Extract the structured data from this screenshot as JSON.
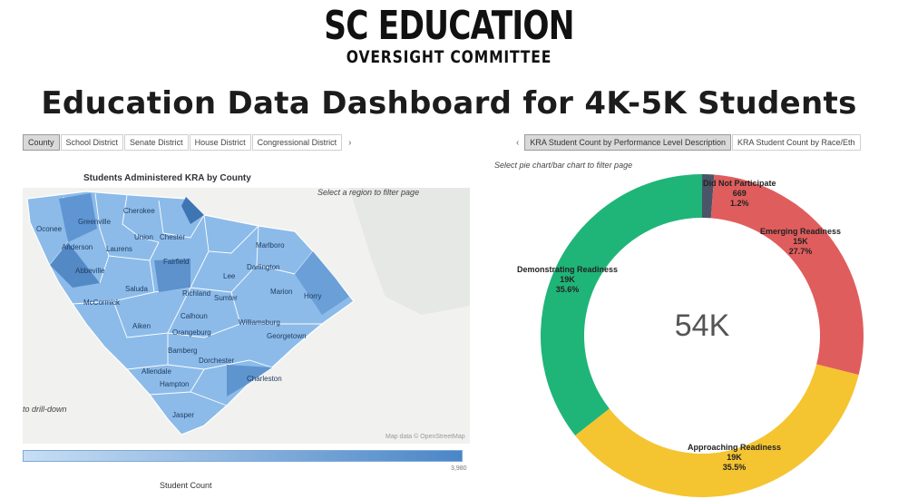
{
  "logo": {
    "line1": "SC EDUCATION",
    "line2": "OVERSIGHT COMMITTEE"
  },
  "title": "Education Data Dashboard for 4K-5K Students",
  "left_tabs": {
    "items": [
      {
        "label": "County",
        "active": true
      },
      {
        "label": "School District",
        "active": false
      },
      {
        "label": "Senate District",
        "active": false
      },
      {
        "label": "House District",
        "active": false
      },
      {
        "label": "Congressional District",
        "active": false
      }
    ],
    "next_icon": "›"
  },
  "right_tabs": {
    "prev_icon": "‹",
    "items": [
      {
        "label": "KRA Student Count by Performance Level Description",
        "active": true
      },
      {
        "label": "KRA Student Count by Race/Eth",
        "active": false
      }
    ]
  },
  "map": {
    "title": "Students Administered KRA by County",
    "hint": "Select a region to filter page",
    "drill_hint": "to drill-down",
    "attribution": "Map data © OpenStreetMap",
    "fill_color": "#7fb0e6",
    "counties": [
      "Oconee",
      "Greenville",
      "Cherokee",
      "Anderson",
      "Laurens",
      "Union",
      "Chester",
      "Abbeville",
      "Fairfield",
      "Marlboro",
      "Darlington",
      "Lee",
      "Saluda",
      "McCormick",
      "Richland",
      "Sumter",
      "Marion",
      "Horry",
      "Calhoun",
      "Aiken",
      "Orangeburg",
      "Williamsburg",
      "Georgetown",
      "Bamberg",
      "Dorchester",
      "Allendale",
      "Charleston",
      "Hampton",
      "Jasper"
    ]
  },
  "legend": {
    "label": "Student Count",
    "max": "3,980"
  },
  "donut": {
    "hint": "Select pie chart/bar chart to filter page",
    "center_value": "54K"
  },
  "chart_data": {
    "type": "pie",
    "donut": true,
    "center_label": "54K",
    "slices": [
      {
        "label": "Did Not Participate",
        "count": "669",
        "percent": "1.2%",
        "value": 1.2,
        "color": "#4a5568"
      },
      {
        "label": "Emerging Readiness",
        "count": "15K",
        "percent": "27.7%",
        "value": 27.7,
        "color": "#e05d5d"
      },
      {
        "label": "Approaching Readiness",
        "count": "19K",
        "percent": "35.5%",
        "value": 35.5,
        "color": "#f5c431"
      },
      {
        "label": "Demonstrating Readiness",
        "count": "19K",
        "percent": "35.6%",
        "value": 35.6,
        "color": "#1fb578"
      }
    ]
  }
}
